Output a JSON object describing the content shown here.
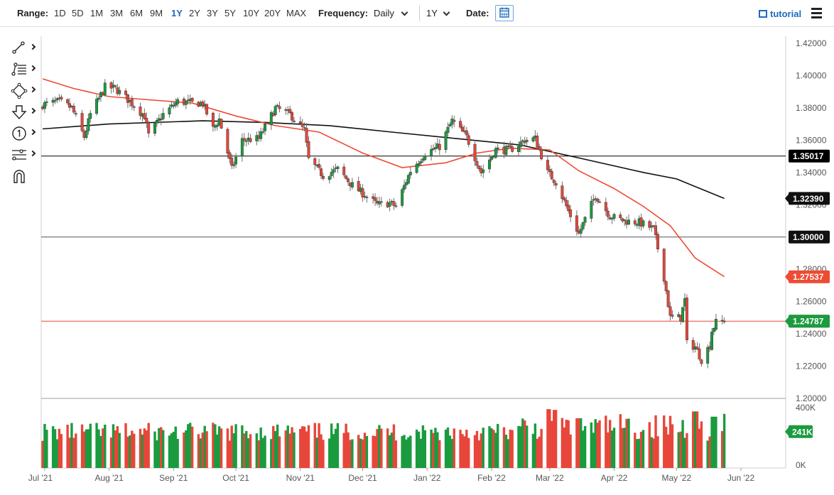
{
  "toolbar": {
    "range_label": "Range:",
    "ranges": [
      "1D",
      "5D",
      "1M",
      "3M",
      "6M",
      "9M",
      "1Y",
      "2Y",
      "3Y",
      "5Y",
      "10Y",
      "20Y",
      "MAX"
    ],
    "active_range": "1Y",
    "frequency_label": "Frequency:",
    "frequency_value": "Daily",
    "period_value": "1Y",
    "date_label": "Date:",
    "tutorial_label": "tutorial",
    "accent_color": "#1c6bbd"
  },
  "tools": [
    {
      "icon": "trendline-icon"
    },
    {
      "icon": "fibonacci-icon"
    },
    {
      "icon": "shape-icon"
    },
    {
      "icon": "arrow-down-icon"
    },
    {
      "icon": "annotation-number-icon"
    },
    {
      "icon": "measure-icon"
    },
    {
      "icon": "magnet-icon"
    }
  ],
  "chart_data": {
    "type": "candlestick",
    "y_ticks": [
      "1.42000",
      "1.40000",
      "1.38000",
      "1.36000",
      "1.34000",
      "1.32000",
      "1.30000",
      "1.28000",
      "1.26000",
      "1.24000",
      "1.22000",
      "1.20000"
    ],
    "ylim": [
      1.2,
      1.42
    ],
    "x_ticks": [
      "Jul '21",
      "Aug '21",
      "Sep '21",
      "Oct '21",
      "Nov '21",
      "Dec '21",
      "Jan '22",
      "Feb '22",
      "Mar '22",
      "Apr '22",
      "May '22",
      "Jun '22"
    ],
    "horizontal_lines": [
      {
        "value": 1.35017,
        "label": "1.35017",
        "color": "#000000"
      },
      {
        "value": 1.3,
        "label": "1.30000",
        "color": "#555555"
      },
      {
        "value": 1.24787,
        "label": "1.24787",
        "color": "#e8463a"
      }
    ],
    "price_badges": [
      {
        "value": 1.3239,
        "label": "1.32390",
        "color": "#111111",
        "series": "ma200"
      },
      {
        "value": 1.27537,
        "label": "1.27537",
        "color": "#ef4a33",
        "series": "ma50"
      },
      {
        "value": 1.24787,
        "label": "1.24787",
        "color": "#1a9b3f",
        "series": "last"
      }
    ],
    "anchors": [
      [
        "2021-06-30",
        1.382
      ],
      [
        "2021-07-08",
        1.384
      ],
      [
        "2021-07-14",
        1.38
      ],
      [
        "2021-07-20",
        1.362
      ],
      [
        "2021-07-23",
        1.376
      ],
      [
        "2021-07-30",
        1.393
      ],
      [
        "2021-08-04",
        1.392
      ],
      [
        "2021-08-11",
        1.384
      ],
      [
        "2021-08-18",
        1.375
      ],
      [
        "2021-08-20",
        1.363
      ],
      [
        "2021-08-27",
        1.376
      ],
      [
        "2021-09-03",
        1.384
      ],
      [
        "2021-09-10",
        1.383
      ],
      [
        "2021-09-15",
        1.383
      ],
      [
        "2021-09-20",
        1.367
      ],
      [
        "2021-09-23",
        1.373
      ],
      [
        "2021-09-29",
        1.342
      ],
      [
        "2021-10-04",
        1.36
      ],
      [
        "2021-10-12",
        1.361
      ],
      [
        "2021-10-20",
        1.38
      ],
      [
        "2021-10-27",
        1.376
      ],
      [
        "2021-11-03",
        1.366
      ],
      [
        "2021-11-05",
        1.348
      ],
      [
        "2021-11-12",
        1.338
      ],
      [
        "2021-11-19",
        1.342
      ],
      [
        "2021-11-26",
        1.332
      ],
      [
        "2021-12-01",
        1.327
      ],
      [
        "2021-12-08",
        1.32
      ],
      [
        "2021-12-14",
        1.321
      ],
      [
        "2021-12-17",
        1.319
      ],
      [
        "2021-12-24",
        1.341
      ],
      [
        "2021-12-31",
        1.352
      ],
      [
        "2022-01-07",
        1.356
      ],
      [
        "2022-01-13",
        1.372
      ],
      [
        "2022-01-20",
        1.362
      ],
      [
        "2022-01-27",
        1.34
      ],
      [
        "2022-02-03",
        1.354
      ],
      [
        "2022-02-10",
        1.354
      ],
      [
        "2022-02-17",
        1.36
      ],
      [
        "2022-02-22",
        1.361
      ],
      [
        "2022-02-28",
        1.34
      ],
      [
        "2022-03-04",
        1.334
      ],
      [
        "2022-03-10",
        1.316
      ],
      [
        "2022-03-15",
        1.302
      ],
      [
        "2022-03-23",
        1.326
      ],
      [
        "2022-03-30",
        1.313
      ],
      [
        "2022-04-06",
        1.31
      ],
      [
        "2022-04-13",
        1.309
      ],
      [
        "2022-04-20",
        1.305
      ],
      [
        "2022-04-25",
        1.275
      ],
      [
        "2022-04-28",
        1.25
      ],
      [
        "2022-05-03",
        1.25
      ],
      [
        "2022-05-05",
        1.261
      ],
      [
        "2022-05-06",
        1.234
      ],
      [
        "2022-05-10",
        1.232
      ],
      [
        "2022-05-13",
        1.224
      ],
      [
        "2022-05-17",
        1.233
      ],
      [
        "2022-05-18",
        1.242
      ],
      [
        "2022-05-20",
        1.247
      ],
      [
        "2022-05-24",
        1.2479
      ]
    ],
    "ma50": [
      [
        "2021-06-30",
        1.398
      ],
      [
        "2021-07-15",
        1.392
      ],
      [
        "2021-08-01",
        1.387
      ],
      [
        "2021-08-20",
        1.385
      ],
      [
        "2021-09-10",
        1.383
      ],
      [
        "2021-10-01",
        1.375
      ],
      [
        "2021-10-20",
        1.369
      ],
      [
        "2021-11-10",
        1.365
      ],
      [
        "2021-12-01",
        1.352
      ],
      [
        "2021-12-20",
        1.343
      ],
      [
        "2022-01-10",
        1.346
      ],
      [
        "2022-01-25",
        1.352
      ],
      [
        "2022-02-10",
        1.355
      ],
      [
        "2022-03-01",
        1.354
      ],
      [
        "2022-03-15",
        1.341
      ],
      [
        "2022-04-01",
        1.33
      ],
      [
        "2022-04-15",
        1.319
      ],
      [
        "2022-04-28",
        1.307
      ],
      [
        "2022-05-10",
        1.287
      ],
      [
        "2022-05-24",
        1.2754
      ]
    ],
    "ma200": [
      [
        "2021-06-30",
        1.367
      ],
      [
        "2021-08-01",
        1.37
      ],
      [
        "2021-09-15",
        1.372
      ],
      [
        "2021-10-15",
        1.371
      ],
      [
        "2021-11-15",
        1.369
      ],
      [
        "2021-12-15",
        1.365
      ],
      [
        "2022-01-15",
        1.361
      ],
      [
        "2022-02-15",
        1.357
      ],
      [
        "2022-03-15",
        1.349
      ],
      [
        "2022-04-15",
        1.34
      ],
      [
        "2022-05-01",
        1.336
      ],
      [
        "2022-05-24",
        1.3239
      ]
    ],
    "volume": {
      "ticks": [
        "400K",
        "0K"
      ],
      "ylim": [
        0,
        400000
      ],
      "last_label": "241K",
      "base": 180000,
      "range": 120000,
      "peaks": [
        [
          "2022-02-28",
          390000
        ],
        [
          "2022-03-04",
          385000
        ],
        [
          "2022-05-10",
          375000
        ],
        [
          "2022-05-19",
          340000
        ],
        [
          "2022-03-15",
          330000
        ]
      ]
    },
    "colors": {
      "up": "#1a9b3f",
      "down": "#e8463a",
      "wick": "#6e6e6e",
      "ma50": "#ef4a33",
      "ma200": "#111111"
    }
  }
}
